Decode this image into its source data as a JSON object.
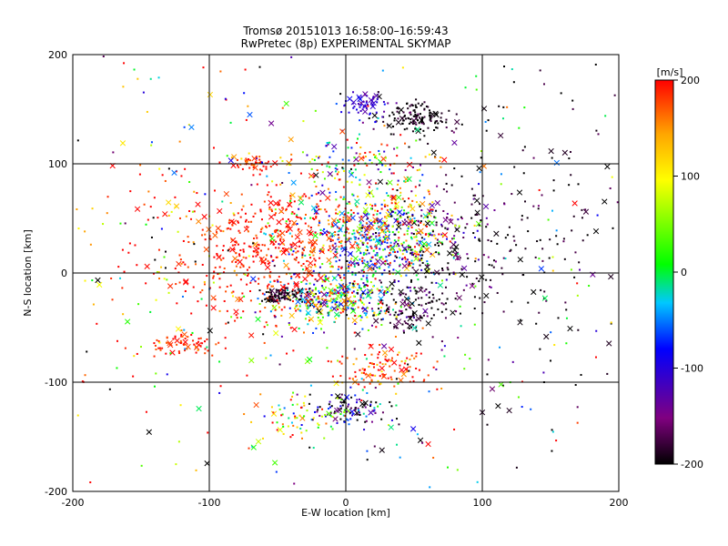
{
  "chart_data": {
    "type": "scatter",
    "title": "Tromsø 20151013 16:58:00–16:59:43",
    "subtitle": "RwPretec (8p) EXPERIMENTAL SKYMAP",
    "xlabel": "E-W location [km]",
    "ylabel": "N-S location [km]",
    "xlim": [
      -200,
      200
    ],
    "ylim": [
      -200,
      200
    ],
    "x_ticks": [
      -200,
      -100,
      0,
      100,
      200
    ],
    "y_ticks": [
      -200,
      -100,
      0,
      100,
      200
    ],
    "x_tick_labels": [
      "-200",
      "-100",
      "0",
      "100",
      "200"
    ],
    "y_tick_labels": [
      "-200",
      "-100",
      "0",
      "100",
      "200"
    ],
    "grid": true,
    "colorbar": {
      "unit": "[m/s]",
      "range": [
        -200,
        200
      ],
      "ticks": [
        200,
        100,
        0,
        -100,
        -200
      ],
      "tick_labels": [
        "200",
        "100",
        "0",
        "-100",
        "-200"
      ],
      "colors": [
        "#000000",
        "#800080",
        "#0000ff",
        "#00c8ff",
        "#00ff00",
        "#ffff00",
        "#ffa500",
        "#ff0000"
      ]
    },
    "marker_types": [
      "dot",
      "cross"
    ],
    "clusters": [
      {
        "x": 50,
        "y": 143,
        "sx": 12,
        "sy": 7,
        "n": 140,
        "v": -200,
        "vs": 20
      },
      {
        "x": 15,
        "y": 155,
        "sx": 7,
        "sy": 7,
        "n": 60,
        "v": -110,
        "vs": 20
      },
      {
        "x": 15,
        "y": 28,
        "sx": 25,
        "sy": 22,
        "n": 380,
        "v": -60,
        "vs": 60
      },
      {
        "x": 35,
        "y": 42,
        "sx": 22,
        "sy": 20,
        "n": 220,
        "v": 120,
        "vs": 80
      },
      {
        "x": 65,
        "y": 20,
        "sx": 25,
        "sy": 35,
        "n": 220,
        "v": -180,
        "vs": 40
      },
      {
        "x": -10,
        "y": -25,
        "sx": 22,
        "sy": 10,
        "n": 320,
        "v": 20,
        "vs": 130
      },
      {
        "x": -45,
        "y": -20,
        "sx": 8,
        "sy": 4,
        "n": 80,
        "v": -200,
        "vs": 20
      },
      {
        "x": -35,
        "y": 30,
        "sx": 30,
        "sy": 25,
        "n": 320,
        "v": 190,
        "vs": 25
      },
      {
        "x": -75,
        "y": 10,
        "sx": 28,
        "sy": 30,
        "n": 160,
        "v": 195,
        "vs": 15
      },
      {
        "x": -68,
        "y": 100,
        "sx": 7,
        "sy": 4,
        "n": 40,
        "v": 190,
        "vs": 20
      },
      {
        "x": -120,
        "y": -65,
        "sx": 12,
        "sy": 5,
        "n": 60,
        "v": 190,
        "vs": 20
      },
      {
        "x": 25,
        "y": -90,
        "sx": 18,
        "sy": 10,
        "n": 110,
        "v": 180,
        "vs": 40
      },
      {
        "x": 5,
        "y": -125,
        "sx": 15,
        "sy": 8,
        "n": 120,
        "v": -150,
        "vs": 90
      },
      {
        "x": -40,
        "y": -135,
        "sx": 15,
        "sy": 12,
        "n": 60,
        "v": 130,
        "vs": 100
      },
      {
        "x": 45,
        "y": -35,
        "sx": 15,
        "sy": 10,
        "n": 100,
        "v": -190,
        "vs": 30
      },
      {
        "x": 130,
        "y": 40,
        "sx": 45,
        "sy": 70,
        "n": 170,
        "v": -195,
        "vs": 15
      },
      {
        "x": 10,
        "y": 100,
        "sx": 30,
        "sy": 15,
        "n": 140,
        "v": 60,
        "vs": 130
      },
      {
        "x": -130,
        "y": 40,
        "sx": 40,
        "sy": 70,
        "n": 120,
        "v": 160,
        "vs": 80
      },
      {
        "x": 0,
        "y": 0,
        "sx": 110,
        "sy": 110,
        "n": 450,
        "v": 0,
        "vs": 160
      }
    ]
  }
}
